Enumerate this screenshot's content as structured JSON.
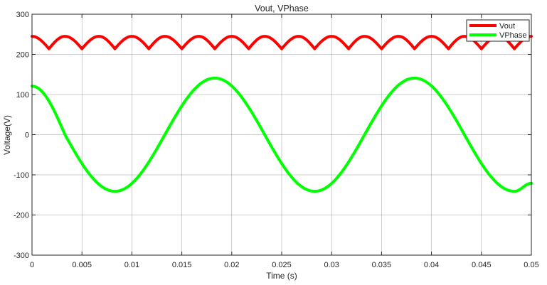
{
  "chart_data": {
    "type": "line",
    "title": "Vout, VPhase",
    "xlabel": "Time (s)",
    "ylabel": "Voltage(V)",
    "xlim": [
      0,
      0.05
    ],
    "ylim": [
      -300,
      300
    ],
    "grid": true,
    "legend_position": "top-right",
    "x_ticks": [
      "0",
      "0.005",
      "0.01",
      "0.015",
      "0.02",
      "0.025",
      "0.03",
      "0.035",
      "0.04",
      "0.045",
      "0.05"
    ],
    "x_tick_values": [
      0,
      0.005,
      0.01,
      0.015,
      0.02,
      0.025,
      0.03,
      0.035,
      0.04,
      0.045,
      0.05
    ],
    "y_ticks": [
      "-300",
      "-200",
      "-100",
      "0",
      "100",
      "200",
      "300"
    ],
    "y_tick_values": [
      -300,
      -200,
      -100,
      0,
      100,
      200,
      300
    ],
    "series": [
      {
        "name": "Vout",
        "color": "#ff0000",
        "x": [
          0,
          0.0017,
          0.0033,
          0.005,
          0.0067,
          0.0083,
          0.01,
          0.0117,
          0.0133,
          0.015,
          0.0167,
          0.0183,
          0.02,
          0.0217,
          0.0233,
          0.025,
          0.0267,
          0.0283,
          0.03,
          0.0317,
          0.0333,
          0.035,
          0.0367,
          0.0383,
          0.04,
          0.0417,
          0.0433,
          0.045,
          0.0467,
          0.0483,
          0.05
        ],
        "values": [
          245,
          214,
          245,
          214,
          245,
          214,
          245,
          214,
          245,
          214,
          245,
          214,
          245,
          214,
          245,
          214,
          245,
          214,
          245,
          214,
          245,
          214,
          245,
          214,
          245,
          214,
          245,
          214,
          245,
          214,
          245
        ]
      },
      {
        "name": "VPhase",
        "color": "#00ff00",
        "x": [
          0,
          0.0033,
          0.0083,
          0.0133,
          0.0183,
          0.0233,
          0.0283,
          0.0333,
          0.0383,
          0.0433,
          0.0483,
          0.05
        ],
        "values": [
          121,
          0,
          -141,
          0,
          141,
          0,
          -141,
          0,
          141,
          0,
          -141,
          -121
        ]
      }
    ]
  }
}
